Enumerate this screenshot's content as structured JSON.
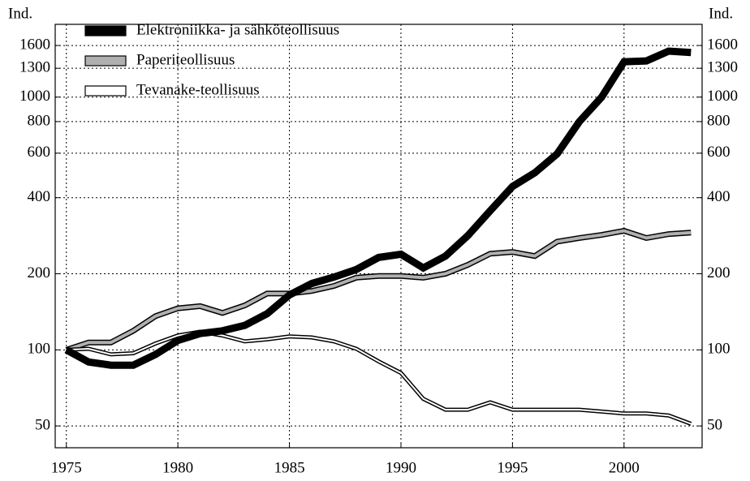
{
  "chart_data": {
    "type": "line",
    "ylabel": "Ind.",
    "yscale": "log",
    "grid": true,
    "legend": "upper left",
    "x": [
      1975,
      1976,
      1977,
      1978,
      1979,
      1980,
      1981,
      1982,
      1983,
      1984,
      1985,
      1986,
      1987,
      1988,
      1989,
      1990,
      1991,
      1992,
      1993,
      1994,
      1995,
      1996,
      1997,
      1998,
      1999,
      2000,
      2001,
      2002,
      2003
    ],
    "xlim": [
      1974.5,
      2003.5
    ],
    "xticks": [
      1975,
      1980,
      1985,
      1990,
      1995,
      2000
    ],
    "ylim": [
      41,
      1940
    ],
    "yticks": [
      50,
      100,
      200,
      400,
      600,
      800,
      1000,
      1300,
      1600
    ],
    "series": [
      {
        "name": "Elektroniikka- ja sähköteollisuus",
        "color": "#000000",
        "values": [
          100,
          89.5,
          87,
          87,
          96,
          109,
          116,
          119,
          125,
          139,
          165,
          183,
          194,
          208,
          232,
          239,
          211,
          235,
          283,
          355,
          443,
          502,
          596,
          800,
          1000,
          1380,
          1390,
          1520,
          1500
        ]
      },
      {
        "name": "Paperiteollisuus",
        "color": "#b0b0b0",
        "values": [
          100,
          107,
          107,
          119,
          136,
          146,
          149,
          140,
          150,
          167,
          167,
          171,
          179,
          193,
          196,
          196,
          193,
          200,
          217,
          240,
          244,
          235,
          268,
          277,
          285,
          296,
          277,
          287,
          291
        ]
      },
      {
        "name": "Tevanake-teollisuus",
        "color": "#ffffff",
        "values": [
          100,
          101,
          96,
          97,
          106,
          114,
          118,
          114,
          108,
          110,
          113,
          112,
          108,
          101,
          90,
          81,
          64,
          58,
          58,
          62,
          58,
          58,
          58,
          58,
          57,
          56,
          56,
          55,
          51
        ]
      }
    ]
  }
}
